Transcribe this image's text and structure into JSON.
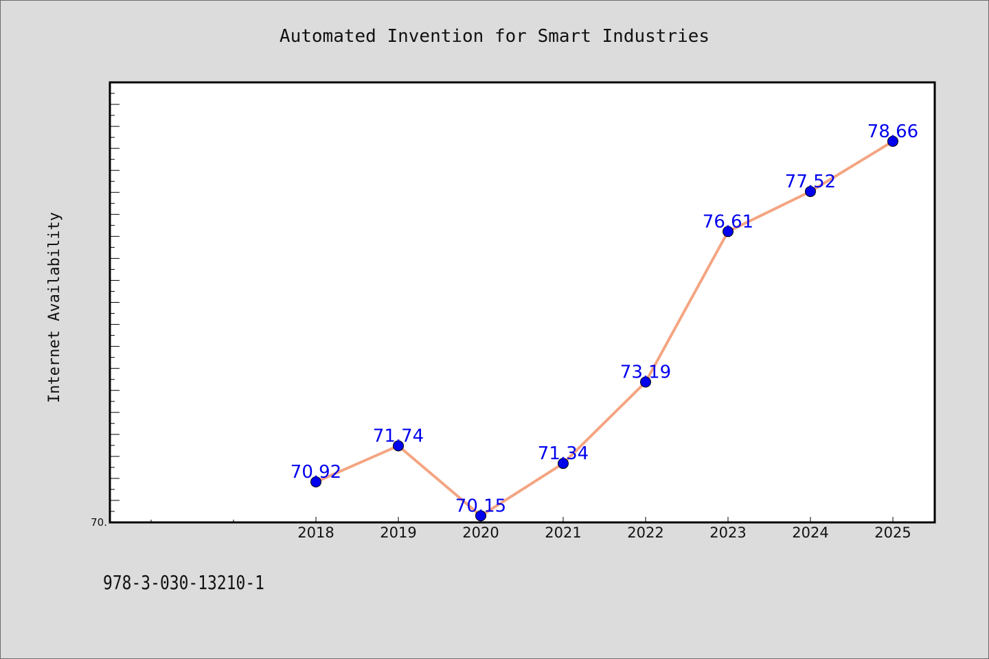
{
  "chart_data": {
    "type": "line",
    "title": "Automated Invention for Smart Industries",
    "xlabel": "",
    "ylabel": "Internet Availability",
    "x": [
      "2018",
      "2019",
      "2020",
      "2021",
      "2022",
      "2023",
      "2024",
      "2025"
    ],
    "series": [
      {
        "values": [
          70.92,
          71.74,
          70.15,
          71.34,
          73.19,
          76.61,
          77.52,
          78.66
        ],
        "labels": [
          "70.92",
          "71.74",
          "70.15",
          "71.34",
          "73.19",
          "76.61",
          "77.52",
          "78.66"
        ]
      }
    ],
    "ylim": [
      70.0,
      80.0
    ],
    "y_tick_labels": [
      {
        "value": 70.0,
        "label": "70."
      }
    ],
    "grid": false,
    "legend": "none",
    "colors": {
      "line": "#f4a582",
      "marker": "#0000ee",
      "label": "#0000ee",
      "axis": "#000000",
      "plot_bg": "#ffffff",
      "page_bg": "#dcdcdc"
    }
  },
  "footnote": "978-3-030-13210-1"
}
